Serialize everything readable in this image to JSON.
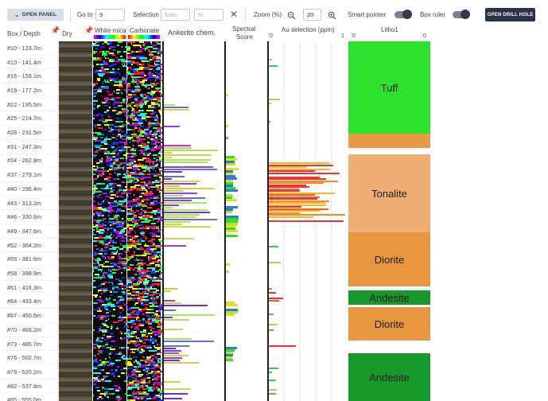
{
  "toolbar": {
    "open_panel": "OPEN PANEL",
    "goto_label": "Go to",
    "goto_value": "9",
    "selection_label": "Selection",
    "from_placeholder": "from",
    "to_placeholder": "to",
    "zoom_label": "Zoom (%)",
    "zoom_value": "20",
    "smart_pointer_label": "Smart pointer",
    "box_ruler_label": "Box ruler",
    "open_drill_hole": "OPEN DRILL HOLE"
  },
  "columns": {
    "box_depth": "Box / Depth",
    "dry": "Dry",
    "white_mica": "White mica",
    "carbonate": "Carbonate",
    "ankerite": "Ankerite chem.",
    "spectral_score_1": "Spectral",
    "spectral_score_2": "Score",
    "au_selection": "Au selection (ppm)",
    "au_min": "0",
    "au_max": "1",
    "litho": "Litho1",
    "litho_min": "0",
    "litho_max": "0"
  },
  "depth_rows": [
    "#10 - 123.7m",
    "#13 - 141.4m",
    "#16 - 159.1m",
    "#19 - 177.2m",
    "#22 - 195.5m",
    "#25 - 214.7m",
    "#28 - 231.5m",
    "#31 - 247.3m",
    "#34 - 262.8m",
    "#37 - 279.1m",
    "#40 - 296.4m",
    "#43 - 313.2m",
    "#46 - 330.6m",
    "#49 - 347.6m",
    "#52 - 364.2m",
    "#55 - 381.6m",
    "#58 - 398.9m",
    "#61 - 416.3m",
    "#64 - 433.4m",
    "#67 - 450.6m",
    "#70 - 468.2m",
    "#73 - 485.7m",
    "#76 - 502.7m",
    "#79 - 520.2m",
    "#82 - 537.8m",
    "#85 - 555.0m"
  ],
  "litho_units": [
    {
      "name": "Tuff",
      "color": "#2fe12f"
    },
    {
      "name": "",
      "color": "#e89a45"
    },
    {
      "name": "Tonalite",
      "color": "#eeae76"
    },
    {
      "name": "Diorite",
      "color": "#e8963f"
    },
    {
      "name": "Andesite",
      "color": "#16982a"
    },
    {
      "name": "Diorite",
      "color": "#e8963f"
    },
    {
      "name": "Andesite",
      "color": "#16982a"
    }
  ],
  "colors": {
    "accent_dark": "#2b3447",
    "panel_button": "#d9dee7"
  },
  "icons": [
    "chevron-down-icon",
    "close-icon",
    "zoom-out-icon",
    "zoom-in-icon",
    "pin-icon"
  ]
}
